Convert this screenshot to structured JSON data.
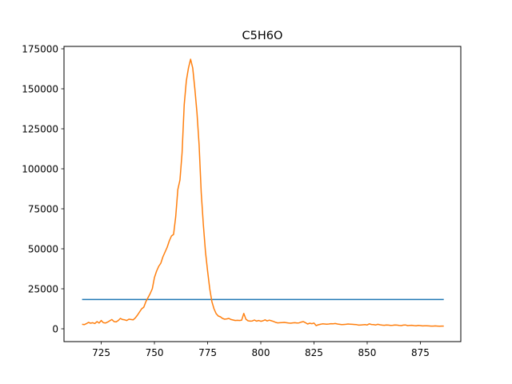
{
  "chart_data": {
    "type": "line",
    "title": "C5H6O",
    "xlabel": "",
    "ylabel": "",
    "xlim": [
      707.5,
      894
    ],
    "ylim": [
      -8000,
      176500
    ],
    "x_ticks": [
      725,
      750,
      775,
      800,
      825,
      850,
      875
    ],
    "y_ticks": [
      0,
      25000,
      50000,
      75000,
      100000,
      125000,
      150000,
      175000
    ],
    "x_tick_labels": [
      "725",
      "750",
      "775",
      "800",
      "825",
      "850",
      "875"
    ],
    "y_tick_labels": [
      "0",
      "25000",
      "50000",
      "75000",
      "100000",
      "125000",
      "150000",
      "175000"
    ],
    "grid": false,
    "colors": {
      "threshold": "#1f77b4",
      "signal": "#ff7f0e"
    },
    "series": [
      {
        "points": [
          [
            716,
            18300
          ],
          [
            886,
            18300
          ]
        ]
      },
      {
        "points": [
          [
            716,
            2800
          ],
          [
            717,
            2600
          ],
          [
            718,
            3200
          ],
          [
            719,
            4000
          ],
          [
            720,
            3500
          ],
          [
            721,
            3800
          ],
          [
            722,
            3300
          ],
          [
            723,
            4500
          ],
          [
            724,
            3600
          ],
          [
            725,
            5200
          ],
          [
            726,
            3800
          ],
          [
            727,
            3600
          ],
          [
            728,
            4200
          ],
          [
            729,
            5000
          ],
          [
            730,
            5800
          ],
          [
            731,
            4500
          ],
          [
            732,
            4300
          ],
          [
            733,
            5200
          ],
          [
            734,
            6500
          ],
          [
            735,
            5800
          ],
          [
            736,
            5600
          ],
          [
            737,
            5200
          ],
          [
            738,
            6000
          ],
          [
            739,
            5800
          ],
          [
            740,
            5600
          ],
          [
            741,
            6800
          ],
          [
            742,
            8500
          ],
          [
            743,
            10500
          ],
          [
            744,
            12500
          ],
          [
            745,
            13500
          ],
          [
            746,
            17000
          ],
          [
            747,
            19500
          ],
          [
            748,
            22000
          ],
          [
            749,
            25000
          ],
          [
            750,
            32000
          ],
          [
            751,
            36000
          ],
          [
            752,
            39000
          ],
          [
            753,
            41000
          ],
          [
            754,
            45000
          ],
          [
            755,
            48000
          ],
          [
            756,
            51000
          ],
          [
            757,
            55000
          ],
          [
            758,
            58000
          ],
          [
            759,
            59000
          ],
          [
            760,
            70000
          ],
          [
            761,
            87000
          ],
          [
            762,
            93000
          ],
          [
            763,
            110000
          ],
          [
            764,
            140000
          ],
          [
            765,
            155000
          ],
          [
            766,
            163000
          ],
          [
            767,
            168500
          ],
          [
            768,
            163000
          ],
          [
            769,
            150000
          ],
          [
            770,
            135000
          ],
          [
            771,
            115000
          ],
          [
            772,
            85000
          ],
          [
            773,
            65000
          ],
          [
            774,
            48000
          ],
          [
            775,
            36000
          ],
          [
            776,
            25000
          ],
          [
            777,
            17000
          ],
          [
            778,
            12500
          ],
          [
            779,
            9500
          ],
          [
            780,
            8000
          ],
          [
            781,
            7500
          ],
          [
            782,
            6500
          ],
          [
            783,
            6000
          ],
          [
            784,
            6200
          ],
          [
            785,
            6500
          ],
          [
            786,
            5800
          ],
          [
            787,
            5500
          ],
          [
            788,
            5200
          ],
          [
            789,
            5300
          ],
          [
            790,
            5200
          ],
          [
            791,
            5400
          ],
          [
            792,
            9600
          ],
          [
            793,
            6000
          ],
          [
            794,
            5000
          ],
          [
            795,
            4800
          ],
          [
            796,
            4900
          ],
          [
            797,
            5500
          ],
          [
            798,
            4800
          ],
          [
            799,
            5200
          ],
          [
            800,
            4700
          ],
          [
            801,
            5000
          ],
          [
            802,
            5600
          ],
          [
            803,
            4900
          ],
          [
            804,
            5400
          ],
          [
            805,
            5000
          ],
          [
            806,
            4600
          ],
          [
            807,
            4000
          ],
          [
            808,
            3700
          ],
          [
            809,
            3800
          ],
          [
            810,
            3900
          ],
          [
            811,
            4000
          ],
          [
            812,
            3800
          ],
          [
            813,
            3600
          ],
          [
            814,
            3500
          ],
          [
            815,
            3700
          ],
          [
            816,
            3800
          ],
          [
            817,
            3600
          ],
          [
            818,
            3700
          ],
          [
            819,
            4200
          ],
          [
            820,
            4500
          ],
          [
            821,
            3800
          ],
          [
            822,
            3000
          ],
          [
            823,
            3500
          ],
          [
            824,
            3200
          ],
          [
            825,
            3600
          ],
          [
            826,
            2000
          ],
          [
            827,
            2500
          ],
          [
            828,
            2800
          ],
          [
            829,
            3100
          ],
          [
            830,
            3000
          ],
          [
            831,
            2900
          ],
          [
            832,
            3000
          ],
          [
            833,
            3200
          ],
          [
            834,
            3100
          ],
          [
            835,
            3300
          ],
          [
            836,
            3000
          ],
          [
            837,
            2800
          ],
          [
            838,
            2600
          ],
          [
            839,
            2700
          ],
          [
            840,
            2800
          ],
          [
            841,
            3000
          ],
          [
            842,
            2900
          ],
          [
            843,
            2800
          ],
          [
            844,
            2700
          ],
          [
            845,
            2600
          ],
          [
            846,
            2300
          ],
          [
            847,
            2400
          ],
          [
            848,
            2500
          ],
          [
            849,
            2600
          ],
          [
            850,
            2400
          ],
          [
            851,
            3100
          ],
          [
            852,
            2700
          ],
          [
            853,
            2600
          ],
          [
            854,
            2400
          ],
          [
            855,
            2800
          ],
          [
            856,
            2500
          ],
          [
            857,
            2300
          ],
          [
            858,
            2200
          ],
          [
            859,
            2400
          ],
          [
            860,
            2300
          ],
          [
            861,
            2100
          ],
          [
            862,
            2200
          ],
          [
            863,
            2400
          ],
          [
            864,
            2300
          ],
          [
            865,
            2100
          ],
          [
            866,
            2000
          ],
          [
            867,
            2300
          ],
          [
            868,
            2400
          ],
          [
            869,
            2000
          ],
          [
            870,
            2100
          ],
          [
            871,
            2200
          ],
          [
            872,
            2000
          ],
          [
            873,
            1900
          ],
          [
            874,
            2100
          ],
          [
            875,
            2000
          ],
          [
            876,
            1800
          ],
          [
            877,
            1900
          ],
          [
            878,
            1900
          ],
          [
            879,
            1800
          ],
          [
            880,
            1700
          ],
          [
            881,
            1700
          ],
          [
            882,
            1800
          ],
          [
            883,
            1700
          ],
          [
            884,
            1600
          ],
          [
            885,
            1700
          ],
          [
            886,
            1700
          ]
        ]
      }
    ]
  }
}
